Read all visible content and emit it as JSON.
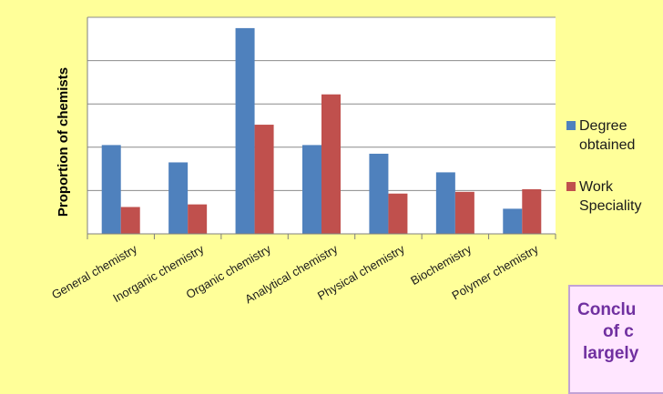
{
  "chart_data": {
    "type": "bar",
    "categories": [
      "General chemistry",
      "Inorganic chemistry",
      "Organic chemistry",
      "Analytical chemistry",
      "Physical chemistry",
      "Biochemistry",
      "Polymer chemistry"
    ],
    "series": [
      {
        "name": "Degree obtained",
        "color": "#4f81bd",
        "values": [
          2.05,
          1.65,
          4.75,
          2.05,
          1.85,
          1.42,
          0.58
        ]
      },
      {
        "name": "Work Speciality",
        "color": "#c0504d",
        "values": [
          0.62,
          0.68,
          2.52,
          3.22,
          0.93,
          0.97,
          1.03
        ]
      }
    ],
    "ylabel": "Proportion of chemists",
    "xlabel": "",
    "ylim": [
      0,
      5
    ],
    "grid": true,
    "y_tick_labels_shown": false,
    "legend_position": "right",
    "plot_background": "#ffffff",
    "page_background": "#ffff99"
  },
  "legend": {
    "items": [
      {
        "line1": "Degree",
        "line2": "obtained",
        "color": "#4f81bd"
      },
      {
        "line1": "Work",
        "line2": "Speciality",
        "color": "#c0504d"
      }
    ]
  },
  "conclusion": {
    "line1": "Conclu",
    "line2": "of c",
    "line3": "largely"
  }
}
